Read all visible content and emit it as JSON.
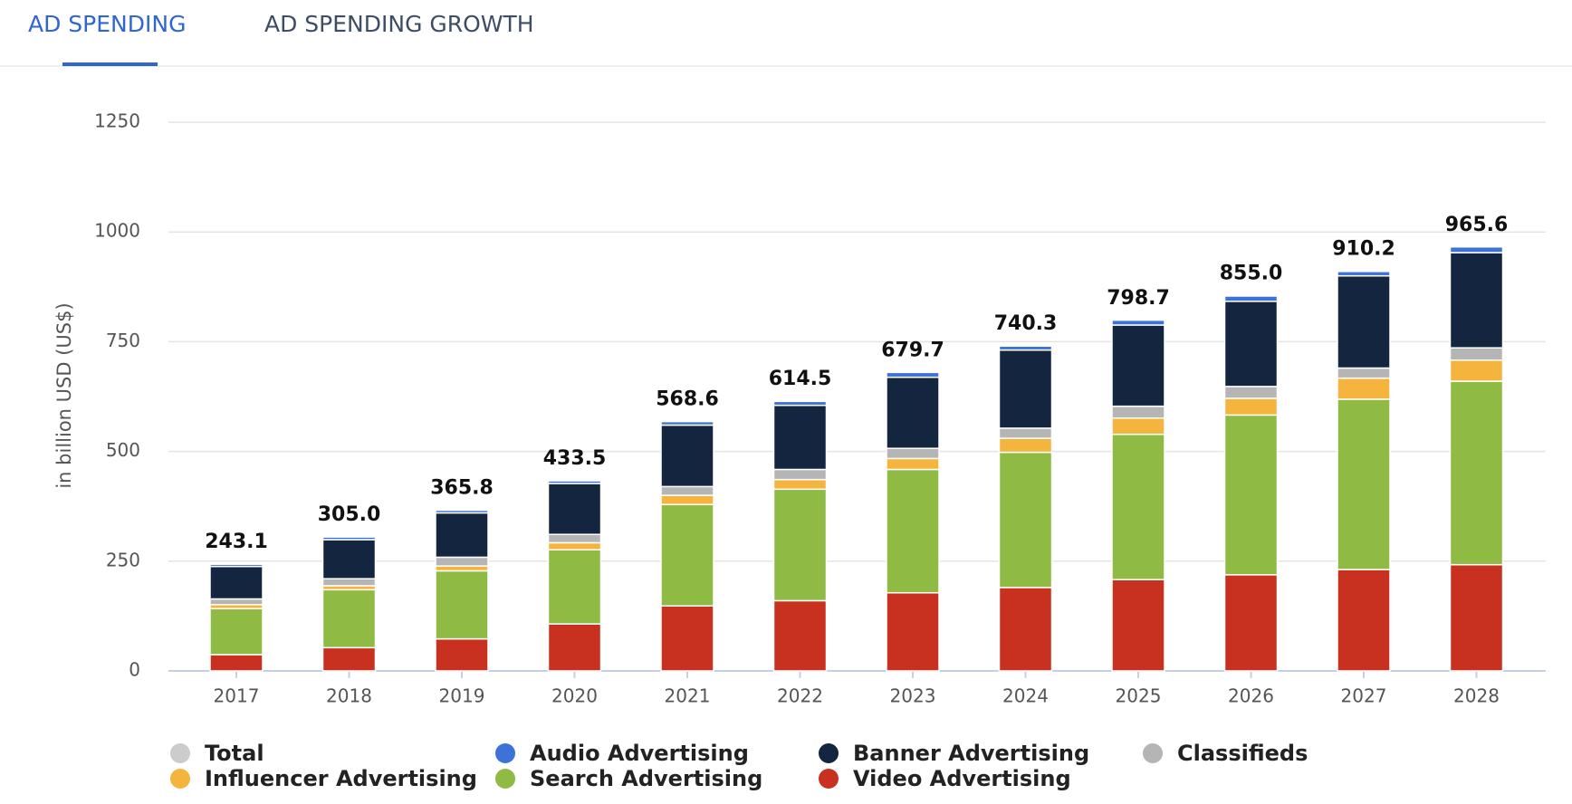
{
  "tabs": [
    "AD SPENDING",
    "AD SPENDING GROWTH"
  ],
  "chart_data": {
    "type": "bar",
    "stacked": true,
    "ylabel": "in billion USD (US$)",
    "categories": [
      "2017",
      "2018",
      "2019",
      "2020",
      "2021",
      "2022",
      "2023",
      "2024",
      "2025",
      "2026",
      "2027",
      "2028"
    ],
    "ylim": [
      0,
      1250
    ],
    "yticks": [
      0,
      250,
      500,
      750,
      1000,
      1250
    ],
    "grid": true,
    "total": {
      "name": "Total",
      "color": "#cccccc",
      "values": [
        243.1,
        305,
        365.8,
        433.5,
        568.6,
        614.5,
        679.7,
        740.3,
        798.7,
        855,
        910.2,
        965.6
      ],
      "value_labels": [
        "243.1",
        "305.0",
        "365.8",
        "433.5",
        "568.6",
        "614.5",
        "679.7",
        "740.3",
        "798.7",
        "855.0",
        "910.2",
        "965.6"
      ]
    },
    "series": [
      {
        "name": "Audio Advertising",
        "color": "#3d72d6",
        "values": [
          5,
          6,
          6,
          6,
          8,
          9,
          11,
          9,
          11,
          12,
          10,
          13
        ]
      },
      {
        "name": "Banner Advertising",
        "color": "#14263f",
        "values": [
          74,
          89,
          101,
          116,
          140,
          146,
          162,
          178,
          185,
          194,
          210,
          217
        ]
      },
      {
        "name": "Classifieds",
        "color": "#b5b5b5",
        "values": [
          13,
          16,
          20,
          19,
          20,
          23,
          23,
          23,
          27,
          27,
          23,
          28
        ]
      },
      {
        "name": "Influencer Advertising",
        "color": "#f4b43e",
        "values": [
          9,
          9,
          11,
          16,
          21,
          22,
          25,
          32,
          37,
          38,
          48,
          48
        ]
      },
      {
        "name": "Search Advertising",
        "color": "#8fba44",
        "values": [
          105,
          132,
          155,
          169,
          231,
          254,
          281,
          308,
          331,
          364,
          388,
          418
        ]
      },
      {
        "name": "Video Advertising",
        "color": "#c8311f",
        "values": [
          37,
          53,
          73,
          107,
          148,
          160,
          178,
          190,
          208,
          219,
          231,
          242
        ]
      }
    ]
  }
}
